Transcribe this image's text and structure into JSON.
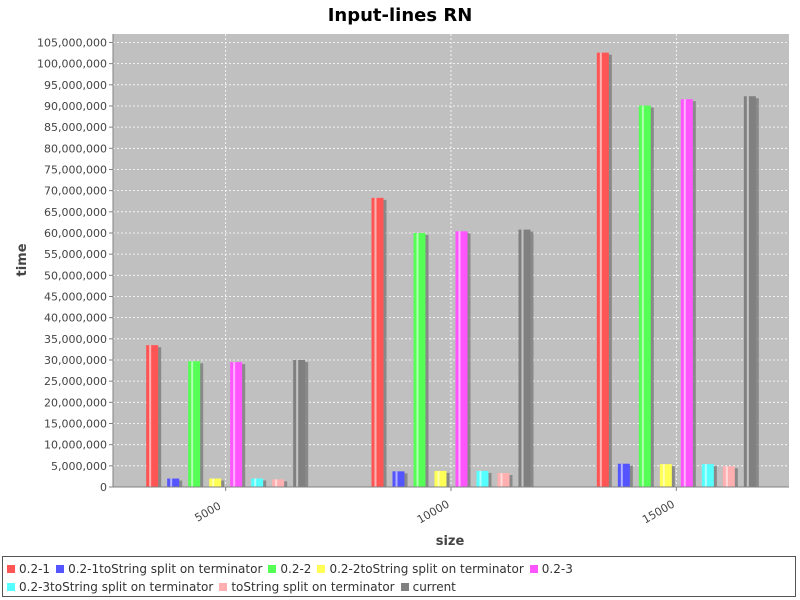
{
  "chart_data": {
    "type": "bar",
    "title": "Input-lines RN",
    "xlabel": "size",
    "ylabel": "time",
    "categories": [
      "5000",
      "10000",
      "15000"
    ],
    "ylim": [
      0,
      107000000
    ],
    "ytick_step": 5000000,
    "grid": true,
    "legend_position": "bottom",
    "series": [
      {
        "name": "0.2-1",
        "color": "#ff5555",
        "values": [
          33500000,
          68300000,
          102600000
        ]
      },
      {
        "name": "0.2-1toString split on terminator",
        "color": "#5555ff",
        "values": [
          2000000,
          3700000,
          5500000
        ]
      },
      {
        "name": "0.2-2",
        "color": "#55ff55",
        "values": [
          29700000,
          60000000,
          90100000
        ]
      },
      {
        "name": "0.2-2toString split on terminator",
        "color": "#ffff55",
        "values": [
          2000000,
          3800000,
          5400000
        ]
      },
      {
        "name": "0.2-3",
        "color": "#ff55ff",
        "values": [
          29500000,
          60400000,
          91600000
        ]
      },
      {
        "name": "0.2-3toString split on terminator",
        "color": "#55ffff",
        "values": [
          2000000,
          3800000,
          5400000
        ]
      },
      {
        "name": "toString split on terminator",
        "color": "#ffafaf",
        "values": [
          1800000,
          3300000,
          4900000
        ]
      },
      {
        "name": "current",
        "color": "#808080",
        "values": [
          30000000,
          60800000,
          92300000
        ]
      }
    ]
  }
}
